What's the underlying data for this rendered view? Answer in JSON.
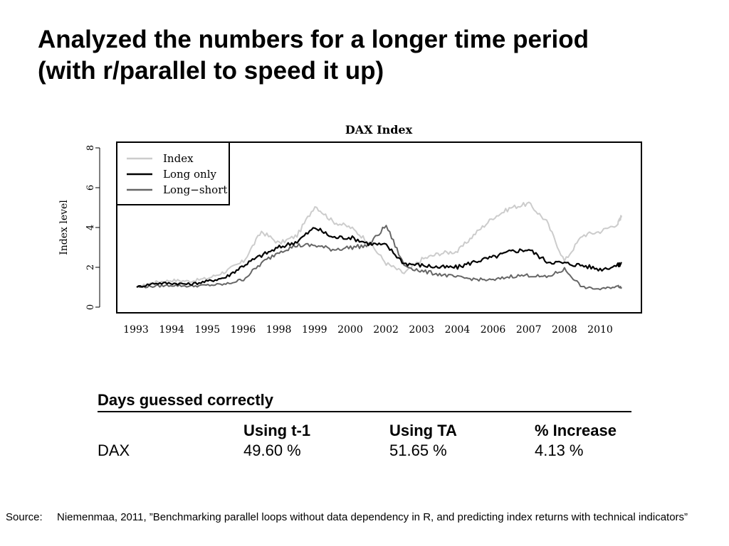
{
  "slide": {
    "title_line1": "Analyzed the numbers for a longer time period",
    "title_line2": "(with r/parallel to speed it up)"
  },
  "chart_data": {
    "type": "line",
    "title": "DAX Index",
    "xlabel": "",
    "ylabel": "Index level",
    "ylim": [
      0,
      8
    ],
    "yticks": [
      "0",
      "2",
      "4",
      "6",
      "8"
    ],
    "x_tick_labels": [
      "1993",
      "1994",
      "1995",
      "1996",
      "1998",
      "1999",
      "2000",
      "2002",
      "2003",
      "2004",
      "2006",
      "2007",
      "2008",
      "2010"
    ],
    "legend_position": "top-left",
    "x": [
      0,
      0.5,
      1,
      1.5,
      2,
      2.5,
      3,
      3.5,
      4,
      4.5,
      5,
      5.5,
      6,
      6.5,
      7,
      7.5,
      8,
      8.5,
      9,
      9.5,
      10,
      10.5,
      11,
      11.5,
      12,
      12.5,
      13,
      13.5,
      13.6
    ],
    "series": [
      {
        "name": "Index",
        "color": "#cccccc",
        "values": [
          1.0,
          1.25,
          1.35,
          1.3,
          1.45,
          1.8,
          2.3,
          3.8,
          3.2,
          3.6,
          5.1,
          4.3,
          4.0,
          3.3,
          2.2,
          1.7,
          2.4,
          2.7,
          2.8,
          3.7,
          4.5,
          5.0,
          5.2,
          4.3,
          2.3,
          3.6,
          3.8,
          4.2,
          4.6
        ]
      },
      {
        "name": "Long only",
        "color": "#000000",
        "values": [
          1.0,
          1.2,
          1.2,
          1.15,
          1.3,
          1.5,
          2.1,
          2.6,
          3.0,
          3.3,
          4.0,
          3.5,
          3.5,
          3.2,
          3.1,
          2.2,
          2.1,
          2.0,
          2.0,
          2.3,
          2.5,
          2.8,
          2.9,
          2.3,
          2.2,
          2.1,
          1.9,
          2.1,
          2.2
        ]
      },
      {
        "name": "Long−short",
        "color": "#666666",
        "values": [
          1.0,
          1.05,
          1.1,
          1.05,
          1.1,
          1.15,
          1.4,
          2.2,
          2.8,
          3.1,
          3.1,
          2.9,
          3.0,
          3.1,
          4.1,
          2.1,
          1.8,
          1.65,
          1.5,
          1.4,
          1.35,
          1.55,
          1.6,
          1.5,
          1.9,
          1.0,
          0.9,
          1.05,
          1.0
        ]
      }
    ]
  },
  "results_table": {
    "caption": "Days guessed correctly",
    "headers": [
      "",
      "Using t-1",
      "Using TA",
      "% Increase"
    ],
    "rows": [
      [
        "DAX",
        "49.60 %",
        "51.65 %",
        "4.13 %"
      ]
    ]
  },
  "source": {
    "label": "Source:",
    "text": "Niemenmaa, 2011, ”Benchmarking parallel loops without data dependency in R, and predicting index returns with technical indicators”"
  }
}
